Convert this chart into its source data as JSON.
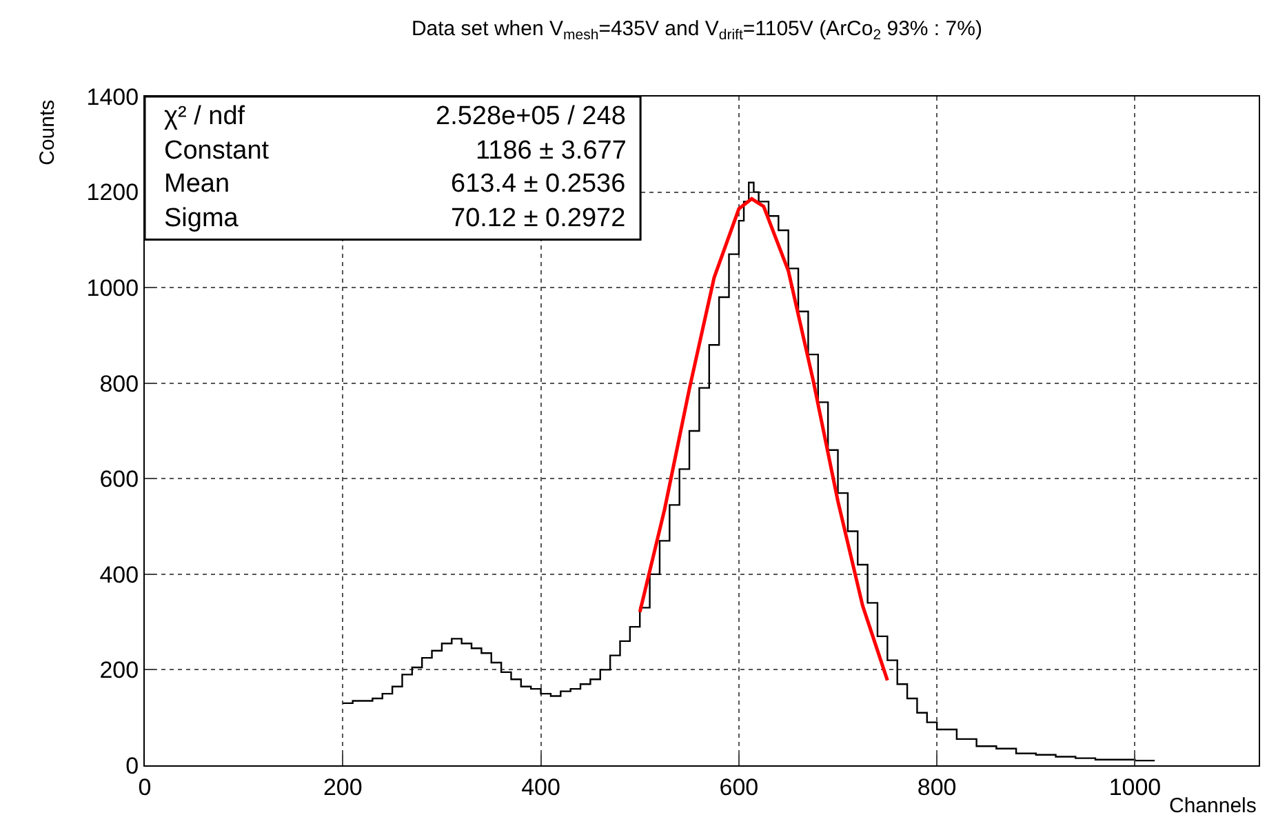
{
  "chart_data": {
    "type": "step",
    "title": "Data set when V$_{mesh}$=435V and V$_{drift}$=1105V (ArCo$_{2}$ 93% : 7%)",
    "xlabel": "Channels",
    "ylabel": "Counts",
    "xlim": [
      0,
      1125
    ],
    "ylim": [
      0,
      1400
    ],
    "xticks": [
      0,
      200,
      400,
      600,
      800,
      1000
    ],
    "yticks": [
      0,
      200,
      400,
      600,
      800,
      1000,
      1200,
      1400
    ],
    "grid": true,
    "legend": false,
    "marker": "none",
    "series": [
      {
        "color": "#000000",
        "x": [
          200,
          210,
          220,
          230,
          240,
          250,
          260,
          270,
          280,
          290,
          300,
          310,
          320,
          330,
          340,
          350,
          360,
          370,
          380,
          390,
          400,
          410,
          420,
          430,
          440,
          450,
          460,
          470,
          480,
          490,
          500,
          510,
          520,
          530,
          540,
          550,
          560,
          570,
          580,
          590,
          600,
          605,
          610,
          615,
          620,
          630,
          640,
          650,
          660,
          670,
          680,
          690,
          700,
          710,
          720,
          730,
          740,
          750,
          760,
          770,
          780,
          790,
          800,
          820,
          840,
          860,
          880,
          900,
          920,
          940,
          960,
          980,
          1000,
          1020
        ],
        "values": [
          130,
          135,
          135,
          140,
          150,
          165,
          190,
          205,
          225,
          240,
          255,
          265,
          255,
          245,
          235,
          215,
          195,
          180,
          165,
          160,
          150,
          145,
          155,
          160,
          170,
          180,
          200,
          230,
          260,
          290,
          330,
          400,
          470,
          545,
          620,
          700,
          790,
          880,
          980,
          1070,
          1140,
          1180,
          1220,
          1200,
          1180,
          1150,
          1120,
          1040,
          950,
          860,
          760,
          660,
          570,
          490,
          420,
          340,
          270,
          220,
          170,
          140,
          110,
          90,
          75,
          55,
          40,
          35,
          25,
          22,
          18,
          15,
          12,
          12,
          10,
          10
        ]
      },
      {
        "type": "line",
        "color": "#ff0000",
        "x": [
          500,
          525,
          550,
          575,
          600,
          613,
          625,
          650,
          675,
          700,
          725,
          750
        ],
        "values": [
          321,
          536,
          788,
          1021,
          1165,
          1186,
          1170,
          1035,
          806,
          553,
          334,
          178
        ]
      }
    ],
    "annotations": [
      "χ² / ndf",
      "2.528e+05 / 248",
      "Constant",
      "1186 ± 3.677",
      "Mean",
      "613.4 ± 0.2536",
      "Sigma",
      "70.12 ± 0.2972"
    ]
  }
}
